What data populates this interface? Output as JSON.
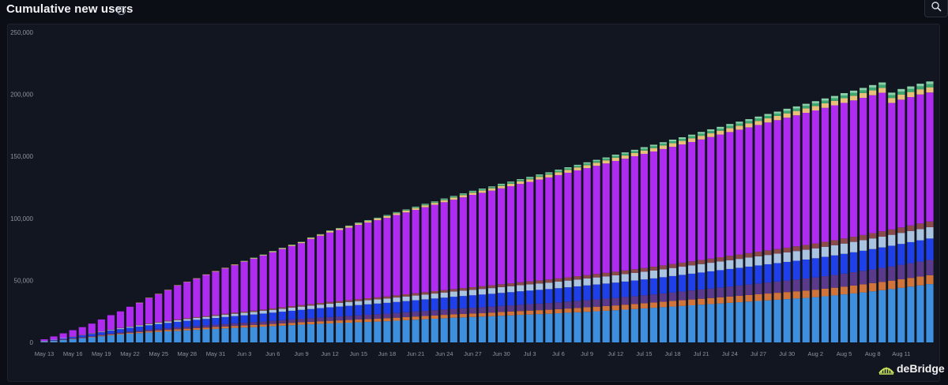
{
  "header": {
    "title": "Cumulative new users",
    "info_glyph": "i"
  },
  "brand": {
    "name": "deBridge",
    "icon": "debridge-logo-icon"
  },
  "chart_data": {
    "type": "bar",
    "stacked": true,
    "title": "Cumulative new users",
    "ylim": [
      0,
      250000
    ],
    "y_ticks": [
      0,
      50000,
      100000,
      150000,
      200000,
      250000
    ],
    "y_tick_labels": [
      "0",
      "50,000",
      "100,000",
      "150,000",
      "200,000",
      "250,000"
    ],
    "x_tick_labels": [
      "May 13",
      "May 16",
      "May 19",
      "May 22",
      "May 25",
      "May 28",
      "May 31",
      "Jun 3",
      "Jun 6",
      "Jun 9",
      "Jun 12",
      "Jun 15",
      "Jun 18",
      "Jun 21",
      "Jun 24",
      "Jun 27",
      "Jun 30",
      "Jul 3",
      "Jul 6",
      "Jul 9",
      "Jul 12",
      "Jul 15",
      "Jul 18",
      "Jul 21",
      "Jul 24",
      "Jul 27",
      "Jul 30",
      "Aug 2",
      "Aug 5",
      "Aug 8",
      "Aug 11"
    ],
    "grid": false,
    "legend": "none",
    "day_count": 94,
    "x": [
      "May 13",
      "May 14",
      "May 15",
      "May 16",
      "May 17",
      "May 18",
      "May 19",
      "May 20",
      "May 21",
      "May 22",
      "May 23",
      "May 24",
      "May 25",
      "May 26",
      "May 27",
      "May 28",
      "May 29",
      "May 30",
      "May 31",
      "Jun 1",
      "Jun 2",
      "Jun 3",
      "Jun 4",
      "Jun 5",
      "Jun 6",
      "Jun 7",
      "Jun 8",
      "Jun 9",
      "Jun 10",
      "Jun 11",
      "Jun 12",
      "Jun 13",
      "Jun 14",
      "Jun 15",
      "Jun 16",
      "Jun 17",
      "Jun 18",
      "Jun 19",
      "Jun 20",
      "Jun 21",
      "Jun 22",
      "Jun 23",
      "Jun 24",
      "Jun 25",
      "Jun 26",
      "Jun 27",
      "Jun 28",
      "Jun 29",
      "Jun 30",
      "Jul 1",
      "Jul 2",
      "Jul 3",
      "Jul 4",
      "Jul 5",
      "Jul 6",
      "Jul 7",
      "Jul 8",
      "Jul 9",
      "Jul 10",
      "Jul 11",
      "Jul 12",
      "Jul 13",
      "Jul 14",
      "Jul 15",
      "Jul 16",
      "Jul 17",
      "Jul 18",
      "Jul 19",
      "Jul 20",
      "Jul 21",
      "Jul 22",
      "Jul 23",
      "Jul 24",
      "Jul 25",
      "Jul 26",
      "Jul 27",
      "Jul 28",
      "Jul 29",
      "Jul 30",
      "Jul 31",
      "Aug 1",
      "Aug 2",
      "Aug 3",
      "Aug 4",
      "Aug 5",
      "Aug 6",
      "Aug 7",
      "Aug 8",
      "Aug 9",
      "Aug 10",
      "Aug 11",
      "Aug 12",
      "Aug 13",
      "Aug 14"
    ],
    "series_colors": [
      "#3f8fdf",
      "#d0743c",
      "#5b3a8c",
      "#1f3fe8",
      "#a9c3e0",
      "#8b4b4b",
      "#b02bf0",
      "#e8c07a",
      "#3aa870",
      "#8ad0a8"
    ],
    "series": [
      {
        "color": "#3f8fdf",
        "values": [
          800,
          1300,
          2000,
          2700,
          3400,
          4100,
          4900,
          5700,
          6400,
          7000,
          7500,
          8000,
          8500,
          8900,
          9300,
          9700,
          10100,
          10500,
          10900,
          11300,
          11700,
          12000,
          12300,
          12700,
          13100,
          13500,
          13900,
          14300,
          14600,
          15000,
          15300,
          15600,
          15900,
          16200,
          16500,
          16800,
          17100,
          17500,
          17900,
          18300,
          18700,
          19100,
          19500,
          19900,
          20200,
          20500,
          20800,
          21100,
          21500,
          21800,
          22200,
          22500,
          22800,
          23100,
          23500,
          23900,
          24300,
          24700,
          25100,
          25500,
          25900,
          26400,
          26900,
          27400,
          27900,
          28400,
          28900,
          29400,
          29900,
          30400,
          30900,
          31400,
          31900,
          32400,
          32900,
          33400,
          33900,
          34400,
          34900,
          35400,
          35900,
          36500,
          37200,
          37900,
          38700,
          39500,
          40300,
          41200,
          42100,
          43000,
          44000,
          45000,
          46000,
          47000
        ]
      },
      {
        "color": "#d0743c",
        "values": [
          50,
          100,
          150,
          200,
          300,
          400,
          500,
          600,
          700,
          800,
          900,
          1000,
          1100,
          1200,
          1300,
          1350,
          1400,
          1450,
          1500,
          1550,
          1600,
          1650,
          1700,
          1750,
          1800,
          1850,
          1900,
          1950,
          2000,
          2050,
          2100,
          2150,
          2200,
          2250,
          2300,
          2350,
          2400,
          2450,
          2500,
          2550,
          2600,
          2650,
          2700,
          2750,
          2800,
          2850,
          2900,
          2950,
          3000,
          3050,
          3100,
          3150,
          3200,
          3250,
          3300,
          3400,
          3500,
          3600,
          3700,
          3800,
          3900,
          4000,
          4100,
          4200,
          4300,
          4400,
          4500,
          4600,
          4700,
          4800,
          4900,
          5000,
          5100,
          5200,
          5300,
          5400,
          5500,
          5600,
          5700,
          5800,
          5900,
          6000,
          6100,
          6200,
          6300,
          6400,
          6500,
          6600,
          6700,
          6800,
          6900,
          7000,
          7100,
          7200
        ]
      },
      {
        "color": "#5b3a8c",
        "values": [
          100,
          200,
          300,
          400,
          500,
          600,
          700,
          800,
          900,
          1000,
          1100,
          1200,
          1300,
          1400,
          1500,
          1600,
          1700,
          1800,
          1900,
          2000,
          2100,
          2200,
          2300,
          2400,
          2500,
          2600,
          2700,
          2800,
          2900,
          3000,
          3100,
          3200,
          3300,
          3400,
          3500,
          3600,
          3700,
          3800,
          3900,
          4000,
          4100,
          4200,
          4300,
          4400,
          4500,
          4600,
          4700,
          4800,
          4900,
          5000,
          5100,
          5200,
          5300,
          5400,
          5500,
          5600,
          5700,
          5800,
          5900,
          6000,
          6100,
          6200,
          6300,
          6400,
          6500,
          6700,
          6900,
          7100,
          7300,
          7500,
          7700,
          7900,
          8100,
          8300,
          8500,
          8700,
          8900,
          9100,
          9300,
          9500,
          9700,
          9900,
          10100,
          10300,
          10500,
          10700,
          10900,
          11100,
          11300,
          11500,
          11700,
          11900,
          12100,
          12300
        ]
      },
      {
        "color": "#1f3fe8",
        "values": [
          300,
          600,
          900,
          1200,
          1500,
          1800,
          2100,
          2400,
          2700,
          3000,
          3300,
          3600,
          3900,
          4200,
          4500,
          4800,
          5000,
          5200,
          5400,
          5600,
          5800,
          6000,
          6200,
          6400,
          6600,
          6800,
          7000,
          7200,
          7400,
          7600,
          7800,
          7950,
          8100,
          8250,
          8400,
          8550,
          8700,
          8850,
          9000,
          9150,
          9300,
          9450,
          9600,
          9750,
          9900,
          10050,
          10200,
          10350,
          10500,
          10650,
          10800,
          10950,
          11100,
          11250,
          11400,
          11550,
          11700,
          11850,
          12000,
          12150,
          12300,
          12450,
          12600,
          12750,
          12900,
          13050,
          13200,
          13350,
          13500,
          13650,
          13800,
          13950,
          14100,
          14250,
          14400,
          14550,
          14700,
          14850,
          15000,
          15150,
          15300,
          15450,
          15600,
          15750,
          15900,
          16050,
          16200,
          16350,
          16500,
          16650,
          16800,
          16950,
          17100,
          17250
        ]
      },
      {
        "color": "#a9c3e0",
        "values": [
          50,
          100,
          150,
          200,
          300,
          400,
          500,
          600,
          700,
          800,
          900,
          1000,
          1100,
          1200,
          1300,
          1400,
          1500,
          1600,
          1700,
          1800,
          1900,
          2000,
          2100,
          2200,
          2300,
          2400,
          2500,
          2600,
          2700,
          2800,
          2900,
          3000,
          3100,
          3200,
          3300,
          3400,
          3500,
          3600,
          3700,
          3800,
          3900,
          4000,
          4100,
          4200,
          4300,
          4400,
          4500,
          4600,
          4700,
          4800,
          4900,
          5000,
          5100,
          5200,
          5300,
          5400,
          5500,
          5600,
          5700,
          5800,
          5900,
          6000,
          6100,
          6200,
          6300,
          6400,
          6500,
          6600,
          6700,
          6800,
          6900,
          7000,
          7100,
          7200,
          7300,
          7400,
          7500,
          7600,
          7700,
          7800,
          7900,
          8000,
          8100,
          8200,
          8300,
          8400,
          8500,
          8600,
          8700,
          8800,
          8900,
          9000,
          9100,
          9200
        ]
      },
      {
        "color": "#8b4b4b",
        "values": [
          0,
          0,
          0,
          50,
          100,
          150,
          200,
          250,
          300,
          350,
          400,
          450,
          500,
          550,
          600,
          650,
          700,
          750,
          800,
          850,
          900,
          950,
          1000,
          1050,
          1100,
          1150,
          1200,
          1250,
          1300,
          1350,
          1400,
          1450,
          1500,
          1550,
          1600,
          1650,
          1700,
          1750,
          1800,
          1850,
          1900,
          1950,
          2000,
          2050,
          2100,
          2150,
          2200,
          2250,
          2300,
          2350,
          2400,
          2450,
          2500,
          2550,
          2600,
          2650,
          2700,
          2750,
          2800,
          2850,
          2900,
          2950,
          3000,
          3050,
          3100,
          3150,
          3200,
          3250,
          3300,
          3350,
          3400,
          3450,
          3500,
          3550,
          3600,
          3650,
          3700,
          3750,
          3800,
          3850,
          3900,
          3950,
          4000,
          4050,
          4100,
          4150,
          4200,
          4250,
          4300,
          4350,
          4400,
          4450,
          4500,
          4550
        ]
      },
      {
        "color": "#b02bf0",
        "values": [
          1200,
          2500,
          3800,
          5100,
          6200,
          7700,
          9600,
          11600,
          13300,
          15800,
          17800,
          20600,
          22500,
          24700,
          27300,
          29100,
          30900,
          33100,
          34800,
          36500,
          38200,
          40300,
          41900,
          43500,
          45300,
          47000,
          48500,
          49900,
          52500,
          54200,
          56000,
          57300,
          58400,
          59900,
          61000,
          62200,
          63300,
          64800,
          66000,
          67200,
          68500,
          69600,
          70800,
          72000,
          73200,
          74400,
          75300,
          76300,
          77300,
          78300,
          79300,
          80200,
          81300,
          82300,
          83300,
          84300,
          85300,
          86200,
          87200,
          88200,
          89300,
          90100,
          91100,
          92000,
          92900,
          93800,
          94500,
          95300,
          96200,
          97100,
          98000,
          98900,
          99800,
          100600,
          101400,
          102200,
          103100,
          103900,
          104800,
          105600,
          106500,
          107200,
          108000,
          108700,
          109300,
          109900,
          110600,
          111200,
          111700,
          102000,
          103000,
          103500,
          104000,
          104000
        ]
      },
      {
        "color": "#e8c07a",
        "values": [
          0,
          0,
          0,
          0,
          0,
          0,
          0,
          0,
          0,
          0,
          100,
          100,
          200,
          200,
          300,
          300,
          400,
          400,
          500,
          500,
          600,
          600,
          700,
          700,
          800,
          800,
          900,
          900,
          1000,
          1000,
          1100,
          1100,
          1200,
          1200,
          1300,
          1300,
          1400,
          1400,
          1500,
          1500,
          1600,
          1600,
          1700,
          1700,
          1800,
          1800,
          1900,
          1900,
          2000,
          2000,
          2100,
          2100,
          2200,
          2200,
          2300,
          2300,
          2400,
          2400,
          2500,
          2500,
          2600,
          2600,
          2700,
          2700,
          2800,
          2800,
          2900,
          2900,
          3000,
          3000,
          3100,
          3100,
          3200,
          3200,
          3300,
          3300,
          3400,
          3400,
          3500,
          3500,
          3600,
          3600,
          3700,
          3700,
          3800,
          3800,
          3900,
          3900,
          4000,
          4000,
          4100,
          4100,
          4200,
          4200
        ]
      },
      {
        "color": "#3aa870",
        "values": [
          0,
          0,
          0,
          0,
          0,
          0,
          0,
          0,
          0,
          0,
          0,
          0,
          0,
          0,
          0,
          0,
          0,
          0,
          0,
          0,
          0,
          100,
          100,
          100,
          200,
          200,
          200,
          300,
          300,
          300,
          400,
          400,
          400,
          500,
          500,
          500,
          600,
          600,
          600,
          700,
          700,
          700,
          800,
          800,
          800,
          900,
          900,
          900,
          1000,
          1000,
          1000,
          1100,
          1100,
          1100,
          1200,
          1200,
          1200,
          1300,
          1300,
          1300,
          1400,
          1400,
          1400,
          1500,
          1500,
          1500,
          1600,
          1600,
          1600,
          1700,
          1700,
          1700,
          1800,
          1800,
          1800,
          1900,
          1900,
          1900,
          2000,
          2000,
          2000,
          2100,
          2100,
          2100,
          2200,
          2200,
          2200,
          2300,
          2300,
          2300,
          2400,
          2400,
          2400,
          2500
        ]
      },
      {
        "color": "#8ad0a8",
        "values": [
          0,
          0,
          0,
          0,
          0,
          0,
          0,
          0,
          0,
          0,
          0,
          0,
          0,
          0,
          0,
          0,
          0,
          0,
          0,
          0,
          0,
          0,
          0,
          0,
          0,
          0,
          0,
          0,
          0,
          0,
          100,
          100,
          100,
          200,
          200,
          200,
          300,
          300,
          300,
          400,
          400,
          400,
          500,
          500,
          500,
          600,
          600,
          600,
          700,
          700,
          700,
          800,
          800,
          800,
          900,
          900,
          900,
          1000,
          1000,
          1000,
          1100,
          1100,
          1100,
          1200,
          1200,
          1200,
          1300,
          1300,
          1300,
          1400,
          1400,
          1400,
          1500,
          1500,
          1500,
          1600,
          1600,
          1600,
          1700,
          1700,
          1700,
          1800,
          1800,
          1800,
          1900,
          1900,
          1900,
          2000,
          2000,
          2000,
          2100,
          2100,
          2100,
          2200
        ]
      }
    ]
  }
}
